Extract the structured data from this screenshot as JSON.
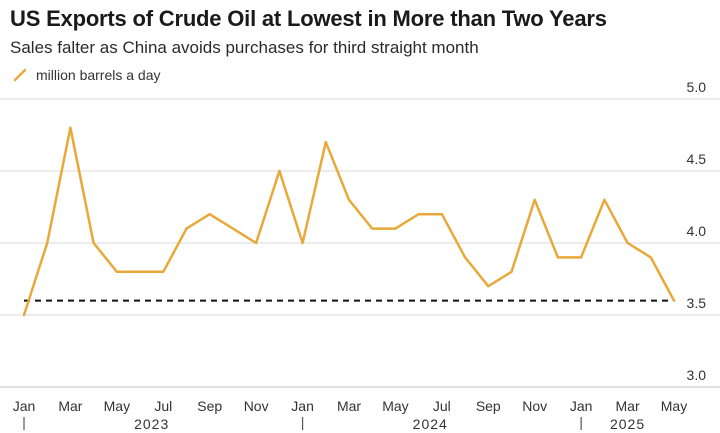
{
  "title": "US Exports of Crude Oil at Lowest in More than Two Years",
  "subtitle": "Sales falter as China avoids purchases for third straight month",
  "legend_label": "million barrels a day",
  "colors": {
    "line": "#e8a93a",
    "grid": "#d9d9d9",
    "reference": "#111111",
    "axis": "#bdbdbd"
  },
  "chart_data": {
    "type": "line",
    "x": [
      "2023-01",
      "2023-02",
      "2023-03",
      "2023-04",
      "2023-05",
      "2023-06",
      "2023-07",
      "2023-08",
      "2023-09",
      "2023-10",
      "2023-11",
      "2023-12",
      "2024-01",
      "2024-02",
      "2024-03",
      "2024-04",
      "2024-05",
      "2024-06",
      "2024-07",
      "2024-08",
      "2024-09",
      "2024-10",
      "2024-11",
      "2024-12",
      "2025-01",
      "2025-02",
      "2025-03",
      "2025-04",
      "2025-05"
    ],
    "series": [
      {
        "name": "million barrels a day",
        "values": [
          3.5,
          4.0,
          4.8,
          4.0,
          3.8,
          3.8,
          3.8,
          4.1,
          4.2,
          4.1,
          4.0,
          4.5,
          4.0,
          4.7,
          4.3,
          4.1,
          4.1,
          4.2,
          4.2,
          3.9,
          3.7,
          3.8,
          4.3,
          3.9,
          3.9,
          4.3,
          4.0,
          3.9,
          3.6
        ]
      }
    ],
    "reference_line": {
      "value": 3.6,
      "style": "dashed"
    },
    "ylim": [
      3.0,
      5.0
    ],
    "yticks": [
      "5.0",
      "4.5",
      "4.0",
      "3.5",
      "3.0"
    ],
    "xtick_labels": [
      "Jan",
      "Mar",
      "May",
      "Jul",
      "Sep",
      "Nov",
      "Jan",
      "Mar",
      "May",
      "Jul",
      "Sep",
      "Nov",
      "Jan",
      "Mar",
      "May"
    ],
    "years": [
      "2023",
      "2024",
      "2025"
    ],
    "grid": true,
    "y_axis_side": "right",
    "xlabel": "",
    "ylabel": ""
  }
}
